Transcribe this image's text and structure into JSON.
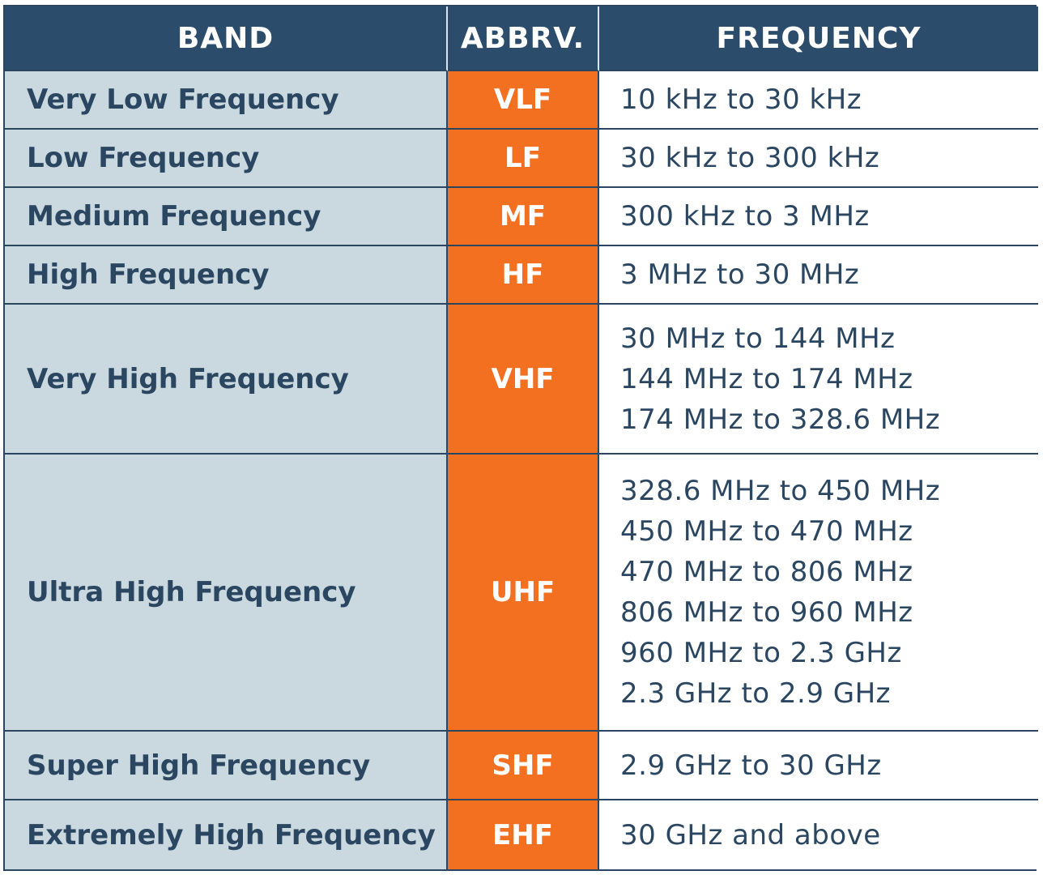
{
  "table": {
    "headers": {
      "band": "BAND",
      "abbrv": "ABBRV.",
      "frequency": "FREQUENCY"
    },
    "rows": [
      {
        "band": "Very Low Frequency",
        "abbrv": "VLF",
        "frequency": [
          "10 kHz to 30 kHz"
        ]
      },
      {
        "band": "Low Frequency",
        "abbrv": "LF",
        "frequency": [
          "30 kHz to 300 kHz"
        ]
      },
      {
        "band": "Medium Frequency",
        "abbrv": "MF",
        "frequency": [
          "300 kHz to 3 MHz"
        ]
      },
      {
        "band": "High Frequency",
        "abbrv": "HF",
        "frequency": [
          "3 MHz to 30 MHz"
        ]
      },
      {
        "band": "Very High Frequency",
        "abbrv": "VHF",
        "frequency": [
          "30 MHz to 144 MHz",
          "144 MHz to 174 MHz",
          "174 MHz to 328.6 MHz"
        ]
      },
      {
        "band": "Ultra High Frequency",
        "abbrv": "UHF",
        "frequency": [
          "328.6 MHz to 450 MHz",
          "450 MHz to 470 MHz",
          "470 MHz to 806 MHz",
          "806 MHz to 960 MHz",
          "960 MHz to 2.3 GHz",
          "2.3 GHz to 2.9 GHz"
        ]
      },
      {
        "band": "Super High Frequency",
        "abbrv": "SHF",
        "frequency": [
          "2.9 GHz to 30 GHz"
        ]
      },
      {
        "band": "Extremely High Frequency",
        "abbrv": "EHF",
        "frequency": [
          "30 GHz and above"
        ]
      }
    ]
  },
  "colors": {
    "header_bg": "#2b4c6b",
    "band_bg": "#cad8df",
    "abbrv_bg": "#f37021",
    "text_dark": "#2b4660"
  }
}
